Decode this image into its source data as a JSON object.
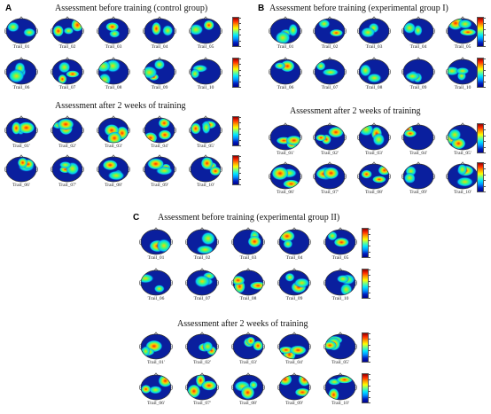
{
  "panels": [
    {
      "id": "A",
      "letter": "A",
      "before_title": "Assessment before training (control group)",
      "after_title": "Assessment after 2 weeks of training",
      "before_rows": [
        [
          "Trail_01",
          "Trail_02",
          "Trail_03",
          "Trail_04",
          "Trail_05"
        ],
        [
          "Trail_06",
          "Trail_07",
          "Trail_08",
          "Trail_09",
          "Trail_10"
        ]
      ],
      "after_rows": [
        [
          "Trail_01'",
          "Trail_02'",
          "Trail_03'",
          "Trail_04'",
          "Trail_05'"
        ],
        [
          "Trail_06'",
          "Trail_07'",
          "Trail_08'",
          "Trail_09'",
          "Trail_10'"
        ]
      ]
    },
    {
      "id": "B",
      "letter": "B",
      "before_title": "Assessment before training (experimental group I)",
      "after_title": "Assessment after 2 weeks of training",
      "before_rows": [
        [
          "Trail_01",
          "Trail_02",
          "Trail_03",
          "Trail_04",
          "Trail_05"
        ],
        [
          "Trail_06",
          "Trail_07",
          "Trail_08",
          "Trail_09",
          "Trail_10"
        ]
      ],
      "after_rows": [
        [
          "Trail_01'",
          "Trail_02'",
          "Trail_03'",
          "Trail_04'",
          "Trail_05'"
        ],
        [
          "Trail_06'",
          "Trail_07'",
          "Trail_08'",
          "Trail_09'",
          "Trail_10'"
        ]
      ]
    },
    {
      "id": "C",
      "letter": "C",
      "before_title": "Assessment before training (experimental group II)",
      "after_title": "Assessment after 2 weeks of training",
      "before_rows": [
        [
          "Trail_01",
          "Trail_02",
          "Trail_03",
          "Trail_04",
          "Trail_05"
        ],
        [
          "Trail_06",
          "Trail_07",
          "Trail_08",
          "Trail_09",
          "Trail_10"
        ]
      ],
      "after_rows": [
        [
          "Trail_01'",
          "Trail_02'",
          "Trail_03'",
          "Trail_04'",
          "Trail_05'"
        ],
        [
          "Trail_06'",
          "Trail_07'",
          "Trail_08'",
          "Trail_09'",
          "Trail_10'"
        ]
      ]
    }
  ],
  "colors": {
    "scalp_base": "#0a1f9e",
    "low": "#00c8ff",
    "mid": "#3cff7a",
    "high": "#ffd000",
    "peak": "#ff2a00"
  }
}
